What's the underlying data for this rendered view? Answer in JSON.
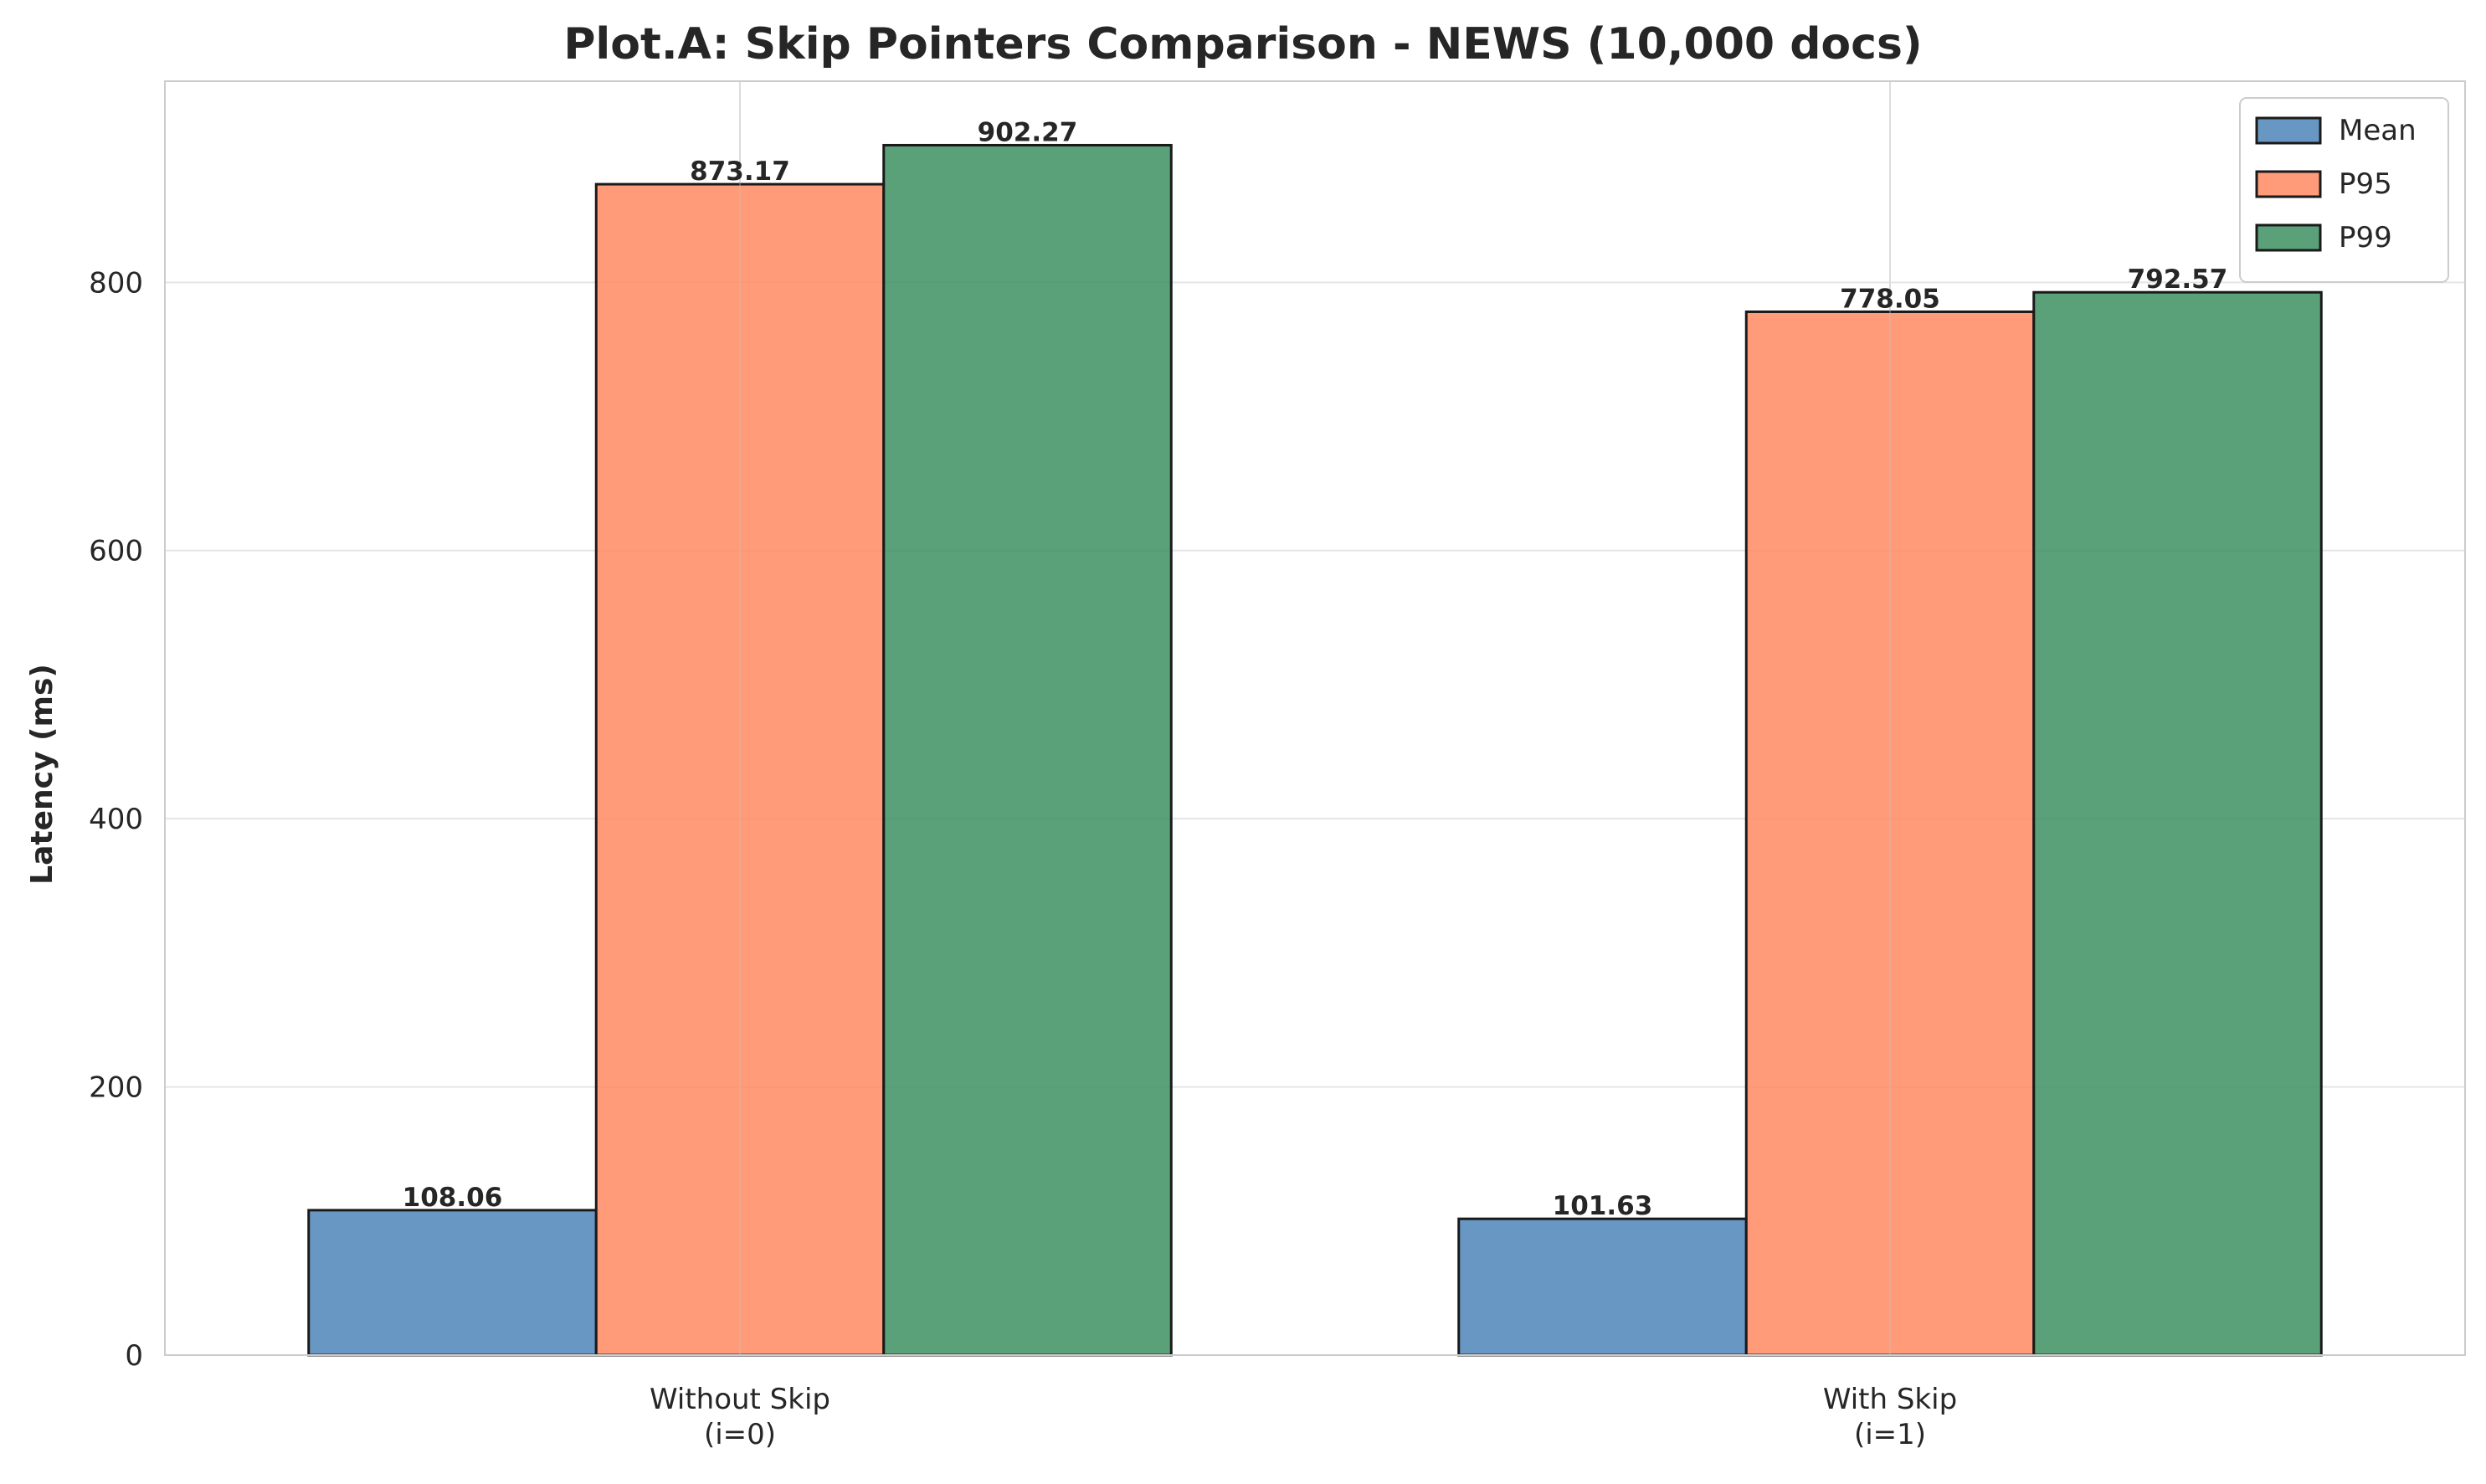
{
  "chart_data": {
    "type": "bar",
    "title": "Plot.A: Skip Pointers Comparison - NEWS (10,000 docs)",
    "xlabel": "",
    "ylabel": "Latency (ms)",
    "ylim": [
      0,
      950
    ],
    "yticks": [
      0,
      200,
      400,
      600,
      800
    ],
    "categories": [
      [
        "Without Skip",
        "(i=0)"
      ],
      [
        "With Skip",
        "(i=1)"
      ]
    ],
    "series": [
      {
        "name": "Mean",
        "values": [
          108.06,
          101.63
        ],
        "labels": [
          "108.06",
          "101.63"
        ],
        "color": "#4f85b8"
      },
      {
        "name": "P95",
        "values": [
          873.17,
          778.05
        ],
        "labels": [
          "873.17",
          "778.05"
        ],
        "color": "#ff8a61"
      },
      {
        "name": "P99",
        "values": [
          902.27,
          792.57
        ],
        "labels": [
          "902.27",
          "792.57"
        ],
        "color": "#3d9162"
      }
    ],
    "grid": true,
    "legend_position": "top-right",
    "bar_edge_color": "#1a1a1a",
    "grid_color": "#e5e5e5",
    "axes_edge_color": "#cccccc"
  }
}
